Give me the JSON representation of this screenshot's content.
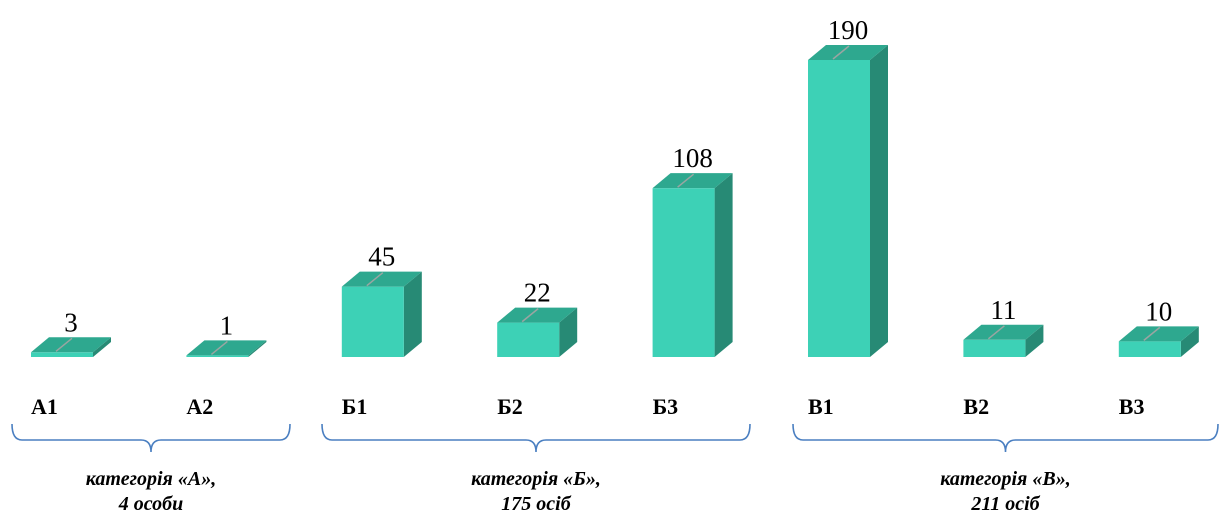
{
  "chart_data": {
    "type": "bar",
    "categories": [
      "А1",
      "А2",
      "Б1",
      "Б2",
      "Б3",
      "В1",
      "В2",
      "В3"
    ],
    "values": [
      3,
      1,
      45,
      22,
      108,
      190,
      11,
      10
    ],
    "title": "",
    "xlabel": "",
    "ylabel": "",
    "ylim": [
      0,
      190
    ],
    "grid": false,
    "groups": [
      {
        "label_line1": "категорія «А»,",
        "label_line2": "4 особи",
        "members": [
          "А1",
          "А2"
        ]
      },
      {
        "label_line1": "категорія «Б»,",
        "label_line2": "175 осіб",
        "members": [
          "Б1",
          "Б2",
          "Б3"
        ]
      },
      {
        "label_line1": "категорія «В»,",
        "label_line2": "211 осіб",
        "members": [
          "В1",
          "В2",
          "В3"
        ]
      }
    ]
  },
  "colors": {
    "bar_front": "#3dd1b6",
    "bar_top": "#2ea88f",
    "bar_side": "#278a75",
    "bracket": "#4a7fc1"
  }
}
